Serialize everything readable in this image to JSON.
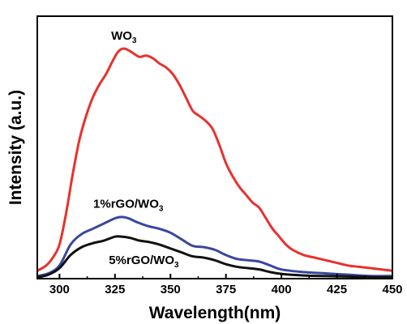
{
  "chart_data": {
    "type": "line",
    "xlabel": "Wavelength(nm)",
    "ylabel": "Intensity (a.u.)",
    "xlim": [
      290,
      450
    ],
    "ylim": [
      0,
      1.0
    ],
    "y_ticks_labeled": false,
    "grid": false,
    "legend": "none",
    "x_ticks": [
      "300",
      "325",
      "350",
      "375",
      "400",
      "425",
      "450"
    ],
    "series": [
      {
        "color": "#e8312f",
        "x": [
          290,
          294,
          297,
          300,
          303,
          306,
          309,
          312,
          315,
          318,
          321,
          324,
          326,
          328,
          330,
          333,
          336,
          339,
          342,
          345,
          348,
          351,
          354,
          357,
          360,
          363,
          366,
          369,
          372,
          375,
          378,
          381,
          384,
          387,
          390,
          393,
          396,
          399,
          402,
          405,
          410,
          415,
          420,
          425,
          430,
          435,
          440,
          445,
          450
        ],
        "y": [
          0.03,
          0.05,
          0.08,
          0.13,
          0.25,
          0.4,
          0.53,
          0.62,
          0.69,
          0.74,
          0.78,
          0.83,
          0.86,
          0.875,
          0.875,
          0.86,
          0.845,
          0.85,
          0.84,
          0.82,
          0.805,
          0.78,
          0.74,
          0.69,
          0.64,
          0.62,
          0.6,
          0.57,
          0.51,
          0.44,
          0.39,
          0.35,
          0.32,
          0.29,
          0.27,
          0.23,
          0.19,
          0.16,
          0.13,
          0.11,
          0.09,
          0.08,
          0.07,
          0.06,
          0.05,
          0.045,
          0.04,
          0.035,
          0.03
        ]
      },
      {
        "color": "#3846a0",
        "x": [
          290,
          295,
          300,
          305,
          310,
          315,
          320,
          325,
          328,
          331,
          335,
          340,
          345,
          350,
          355,
          360,
          365,
          370,
          375,
          380,
          385,
          390,
          395,
          400,
          410,
          420,
          430,
          440,
          450
        ],
        "y": [
          0.01,
          0.02,
          0.05,
          0.13,
          0.17,
          0.19,
          0.21,
          0.23,
          0.235,
          0.23,
          0.215,
          0.2,
          0.19,
          0.175,
          0.15,
          0.125,
          0.12,
          0.11,
          0.09,
          0.075,
          0.07,
          0.065,
          0.05,
          0.035,
          0.025,
          0.02,
          0.015,
          0.01,
          0.01
        ]
      },
      {
        "color": "#111111",
        "x": [
          290,
          295,
          300,
          305,
          310,
          315,
          320,
          325,
          328,
          332,
          336,
          340,
          345,
          350,
          355,
          360,
          365,
          370,
          375,
          380,
          385,
          390,
          395,
          400,
          410,
          420,
          430,
          440,
          450
        ],
        "y": [
          0.005,
          0.015,
          0.04,
          0.09,
          0.12,
          0.135,
          0.145,
          0.16,
          0.16,
          0.155,
          0.145,
          0.14,
          0.13,
          0.115,
          0.1,
          0.085,
          0.08,
          0.07,
          0.055,
          0.045,
          0.04,
          0.035,
          0.025,
          0.018,
          0.012,
          0.01,
          0.008,
          0.006,
          0.005
        ]
      }
    ],
    "annotations": [
      {
        "text": "WO",
        "sub": "3",
        "x": 329,
        "y": 0.91
      },
      {
        "text": "1%rGO/WO",
        "sub": "3",
        "x": 331,
        "y": 0.27
      },
      {
        "text": "5%rGO/WO",
        "sub": "3",
        "x": 338,
        "y": 0.055
      }
    ]
  }
}
